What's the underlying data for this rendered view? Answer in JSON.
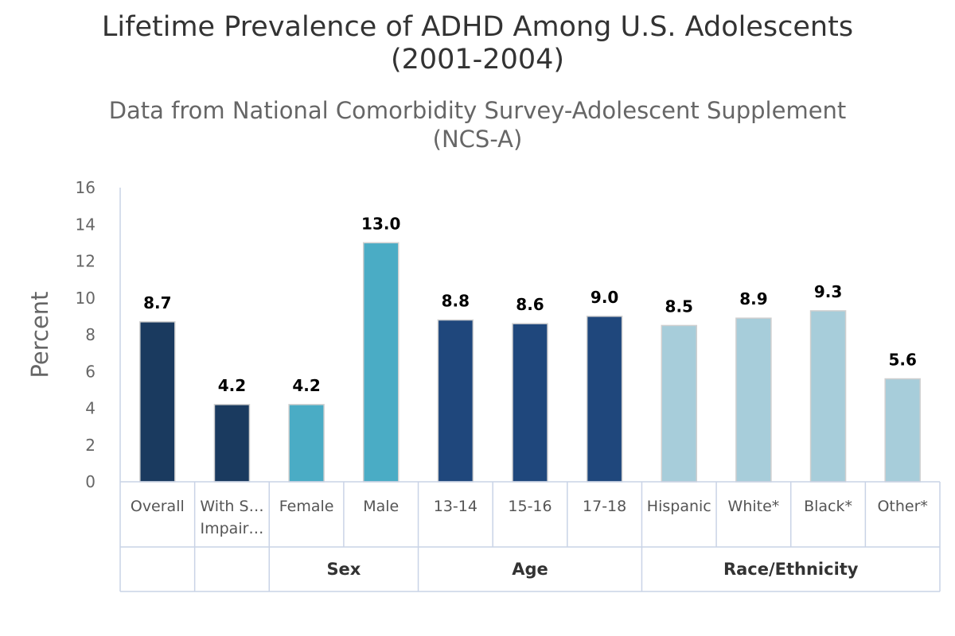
{
  "chart_data": {
    "type": "bar",
    "title": "Lifetime Prevalence of ADHD Among U.S. Adolescents (2001-2004)",
    "title_lines": [
      "Lifetime Prevalence of ADHD Among U.S. Adolescents",
      "(2001-2004)"
    ],
    "subtitle": "Data from National Comorbidity Survey-Adolescent Supplement (NCS-A)",
    "subtitle_lines": [
      "Data from National Comorbidity Survey-Adolescent Supplement",
      "(NCS-A)"
    ],
    "ylabel": "Percent",
    "xlabel": "",
    "ylim": [
      0,
      16
    ],
    "yticks": [
      0,
      2,
      4,
      6,
      8,
      10,
      12,
      14,
      16
    ],
    "grid": false,
    "categories": [
      {
        "label": [
          "Overall"
        ],
        "value": 8.7,
        "value_label": "8.7",
        "color": "#1a3a5f"
      },
      {
        "label": [
          "With S…",
          "Impair…"
        ],
        "value": 4.2,
        "value_label": "4.2",
        "color": "#1a3a5f"
      },
      {
        "label": [
          "Female"
        ],
        "value": 4.2,
        "value_label": "4.2",
        "color": "#4aacc5"
      },
      {
        "label": [
          "Male"
        ],
        "value": 13.0,
        "value_label": "13.0",
        "color": "#4aacc5"
      },
      {
        "label": [
          "13-14"
        ],
        "value": 8.8,
        "value_label": "8.8",
        "color": "#1f477c"
      },
      {
        "label": [
          "15-16"
        ],
        "value": 8.6,
        "value_label": "8.6",
        "color": "#1f477c"
      },
      {
        "label": [
          "17-18"
        ],
        "value": 9.0,
        "value_label": "9.0",
        "color": "#1f477c"
      },
      {
        "label": [
          "Hispanic"
        ],
        "value": 8.5,
        "value_label": "8.5",
        "color": "#a7cdda"
      },
      {
        "label": [
          "White*"
        ],
        "value": 8.9,
        "value_label": "8.9",
        "color": "#a7cdda"
      },
      {
        "label": [
          "Black*"
        ],
        "value": 9.3,
        "value_label": "9.3",
        "color": "#a7cdda"
      },
      {
        "label": [
          "Other*"
        ],
        "value": 5.6,
        "value_label": "5.6",
        "color": "#a7cdda"
      }
    ],
    "groups": [
      {
        "name": "",
        "start": 0,
        "count": 1
      },
      {
        "name": "",
        "start": 1,
        "count": 1
      },
      {
        "name": "Sex",
        "start": 2,
        "count": 2
      },
      {
        "name": "Age",
        "start": 4,
        "count": 3
      },
      {
        "name": "Race/Ethnicity",
        "start": 7,
        "count": 4
      }
    ]
  }
}
